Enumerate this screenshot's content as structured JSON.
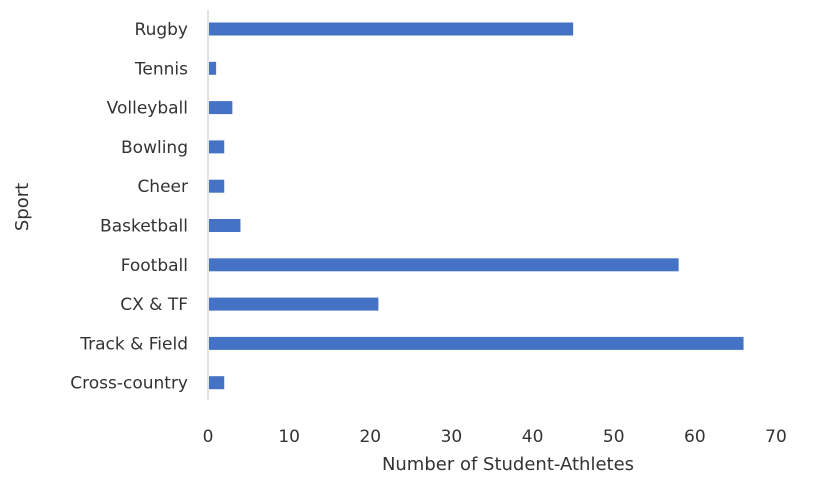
{
  "chart_data": {
    "type": "bar",
    "orientation": "horizontal",
    "title": "",
    "xlabel": "Number of Student-Athletes",
    "ylabel": "Sport",
    "categories": [
      "Rugby",
      "Tennis",
      "Volleyball",
      "Bowling",
      "Cheer",
      "Basketball",
      "Football",
      "CX & TF",
      "Track & Field",
      "Cross-country"
    ],
    "values": [
      45,
      1,
      3,
      2,
      2,
      4,
      58,
      21,
      66,
      2
    ],
    "xlim": [
      0,
      70
    ],
    "xticks": [
      "0",
      "10",
      "20",
      "30",
      "40",
      "50",
      "60",
      "70"
    ],
    "grid": false,
    "legend": "none",
    "bar_color": "#4472C4"
  }
}
